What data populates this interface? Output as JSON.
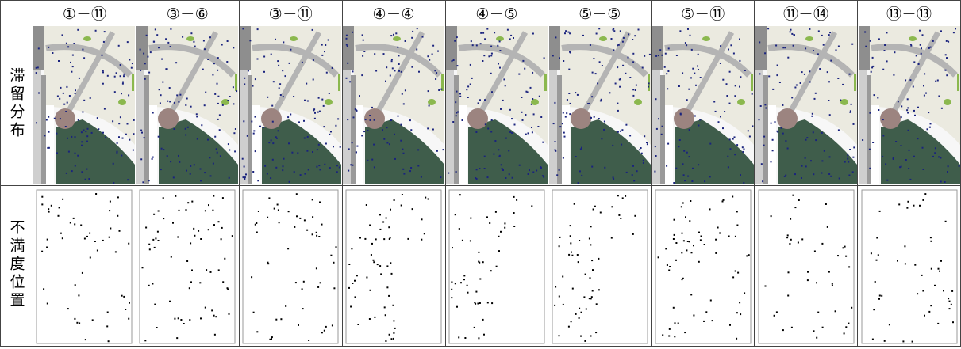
{
  "table": {
    "columns": [
      "①－⑪",
      "③－⑥",
      "③－⑪",
      "④－④",
      "④－⑤",
      "⑤－⑤",
      "⑤－⑪",
      "⑪－⑭",
      "⑬－⑬"
    ],
    "rows": [
      {
        "label": "滞留分布"
      },
      {
        "label": "不満度位置"
      }
    ]
  }
}
